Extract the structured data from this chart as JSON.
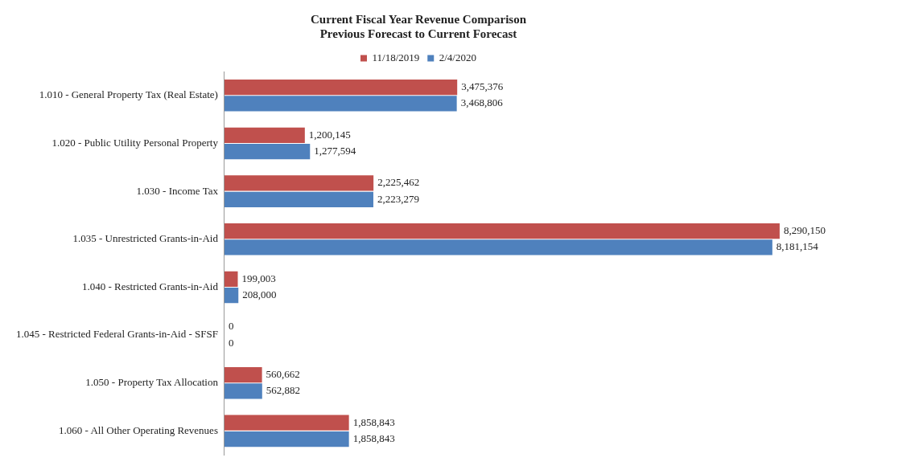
{
  "chart_data": {
    "type": "bar",
    "orientation": "horizontal",
    "title": "Current Fiscal Year Revenue Comparison",
    "subtitle": "Previous Forecast to Current Forecast",
    "categories": [
      "1.010 - General Property Tax (Real Estate)",
      "1.020 - Public Utility Personal Property",
      "1.030 - Income Tax",
      "1.035 - Unrestricted Grants-in-Aid",
      "1.040 - Restricted Grants-in-Aid",
      "1.045 - Restricted Federal Grants-in-Aid - SFSF",
      "1.050 - Property Tax Allocation",
      "1.060 - All Other Operating Revenues"
    ],
    "series": [
      {
        "name": "11/18/2019",
        "color": "#c0504d",
        "values": [
          3475376,
          1200145,
          2225462,
          8290150,
          199003,
          0,
          560662,
          1858843
        ],
        "value_labels": [
          "3,475,376",
          "1,200,145",
          "2,225,462",
          "8,290,150",
          "199,003",
          "0",
          "560,662",
          "1,858,843"
        ]
      },
      {
        "name": "2/4/2020",
        "color": "#4f81bd",
        "values": [
          3468806,
          1277594,
          2223279,
          8181154,
          208000,
          0,
          562882,
          1858843
        ],
        "value_labels": [
          "3,468,806",
          "1,277,594",
          "2,223,279",
          "8,181,154",
          "208,000",
          "0",
          "562,882",
          "1,858,843"
        ]
      }
    ],
    "legend": "top",
    "grid": false
  }
}
